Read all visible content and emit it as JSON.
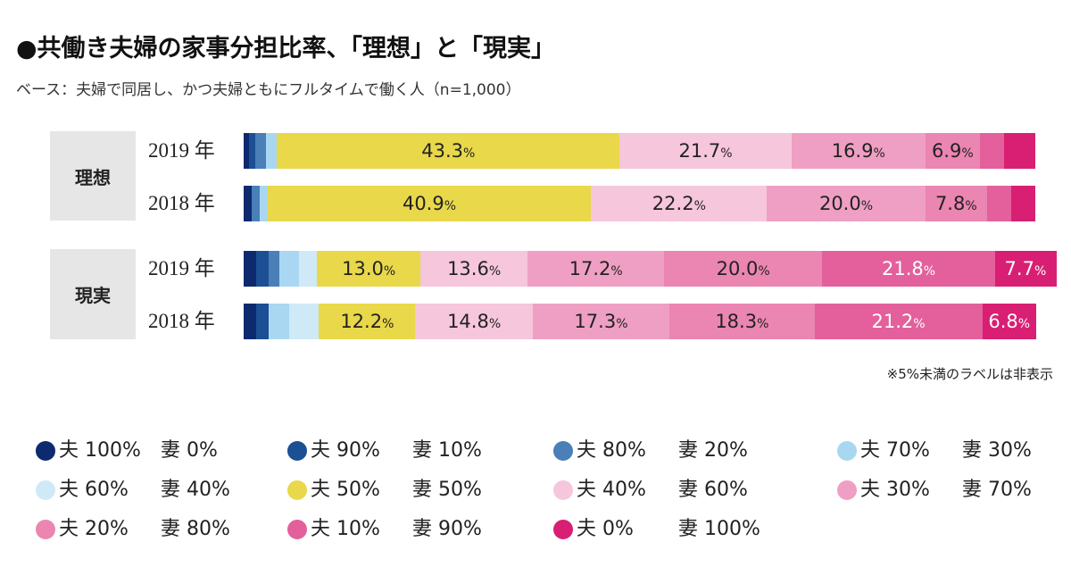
{
  "title": "●共働き夫婦の家事分担比率、「理想」と「現実」",
  "subtitle": "ベース：夫婦で同居し、かつ夫婦ともにフルタイムで働く人（n=1,000）",
  "note": "※5%未満のラベルは非表示",
  "colors": [
    "#0d2a6e",
    "#1d4f94",
    "#4a7fb8",
    "#a9d7f2",
    "#cfe9f7",
    "#e8d84a",
    "#f6c6dc",
    "#ef9fc3",
    "#eb85b2",
    "#e3609c",
    "#d81f73"
  ],
  "chart_data": {
    "type": "stacked-bar-horizontal",
    "title": "●共働き夫婦の家事分担比率、「理想」と「現実」",
    "xlim": [
      0,
      100
    ],
    "categories": [
      "夫 100% 妻 0%",
      "夫 90% 妻 10%",
      "夫 80% 妻 20%",
      "夫 70% 妻 30%",
      "夫 60% 妻 40%",
      "夫 50% 妻 50%",
      "夫 40% 妻 60%",
      "夫 30% 妻 70%",
      "夫 20% 妻 80%",
      "夫 10% 妻 90%",
      "夫 0% 妻 100%"
    ],
    "groups": [
      {
        "label": "理想",
        "rows": [
          {
            "year": "2019 年",
            "values": [
              0.7,
              0.8,
              1.3,
              1.4,
              0.0,
              43.3,
              21.7,
              16.9,
              6.9,
              3.1,
              3.9
            ]
          },
          {
            "year": "2018 年",
            "values": [
              1.0,
              0.0,
              1.0,
              1.0,
              0.0,
              40.9,
              22.2,
              20.0,
              7.8,
              3.1,
              3.0
            ]
          }
        ]
      },
      {
        "label": "現実",
        "rows": [
          {
            "year": "2019 年",
            "values": [
              1.6,
              1.6,
              1.3,
              2.5,
              2.3,
              13.0,
              13.6,
              17.2,
              20.0,
              21.8,
              7.7
            ]
          },
          {
            "year": "2018 年",
            "values": [
              1.6,
              1.6,
              0.0,
              2.5,
              3.8,
              12.2,
              14.8,
              17.3,
              18.3,
              21.2,
              6.8
            ]
          }
        ]
      }
    ],
    "label_threshold": 5,
    "label_suffix": "%",
    "legend": [
      {
        "left": "夫 100%",
        "right": "妻 0%"
      },
      {
        "left": "夫 90%",
        "right": "妻 10%"
      },
      {
        "left": "夫 80%",
        "right": "妻 20%"
      },
      {
        "left": "夫 70%",
        "right": "妻 30%"
      },
      {
        "left": "夫 60%",
        "right": "妻 40%"
      },
      {
        "left": "夫 50%",
        "right": "妻 50%"
      },
      {
        "left": "夫 40%",
        "right": "妻 60%"
      },
      {
        "left": "夫 30%",
        "right": "妻 70%"
      },
      {
        "left": "夫 20%",
        "right": "妻 80%"
      },
      {
        "left": "夫 10%",
        "right": "妻 90%"
      },
      {
        "left": "夫 0%",
        "right": "妻 100%"
      }
    ]
  }
}
